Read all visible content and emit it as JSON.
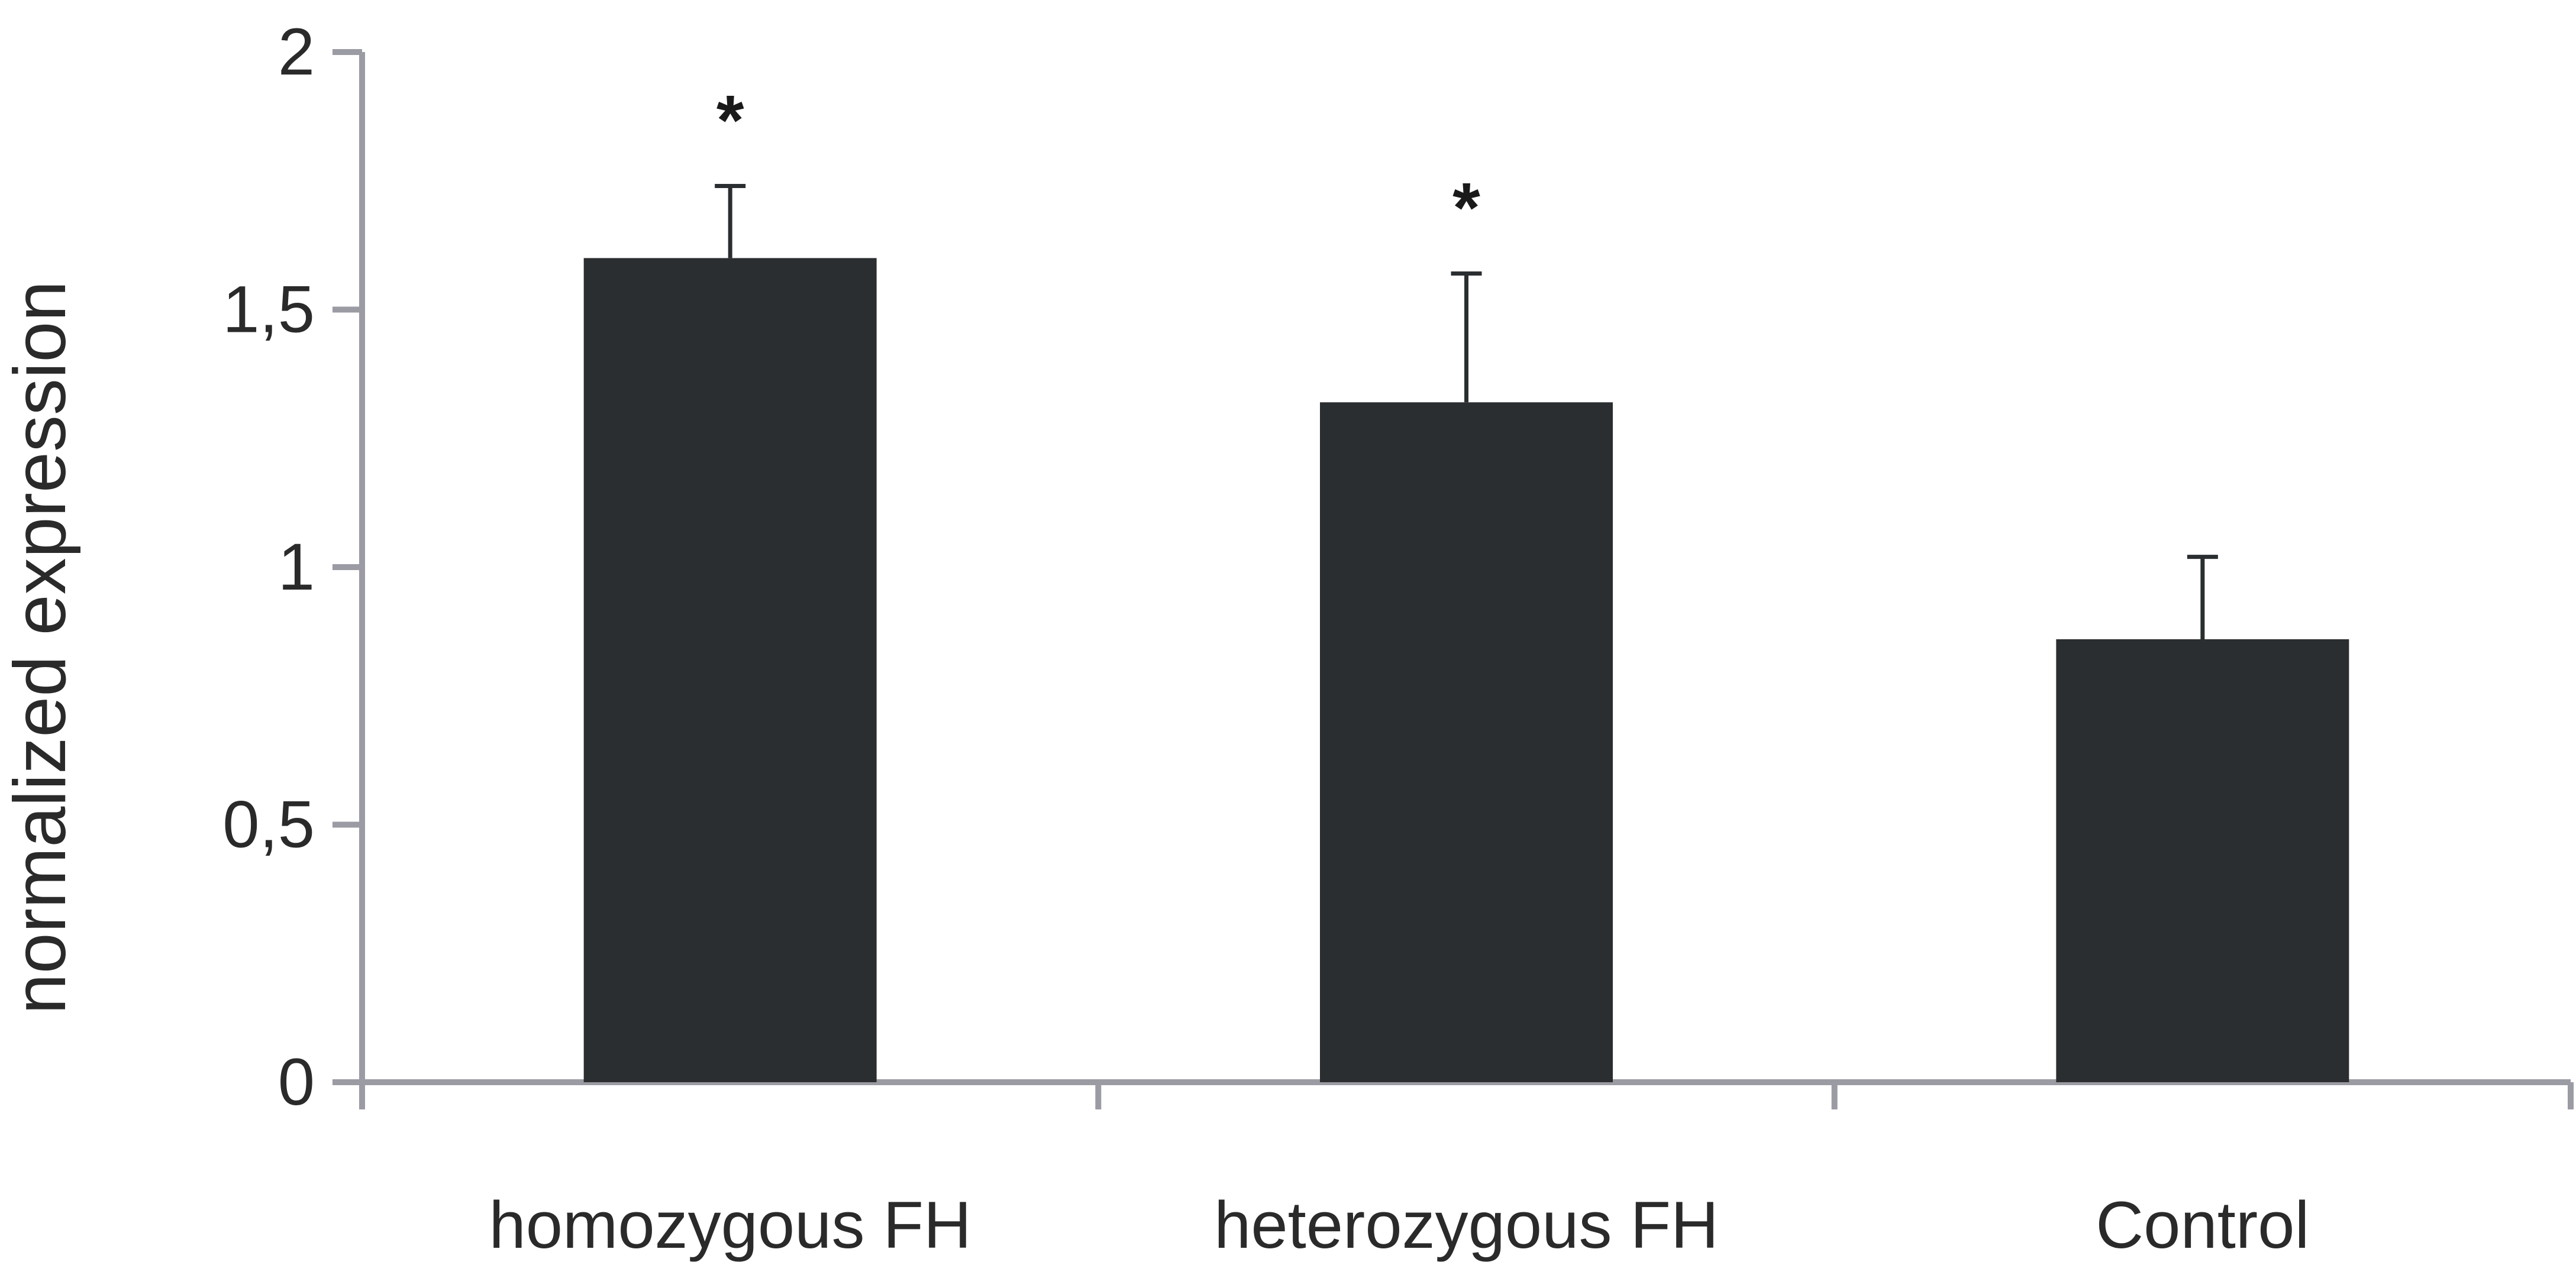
{
  "chart_data": {
    "type": "bar",
    "ylabel": "normalized expression",
    "xlabel": "",
    "categories": [
      "homozygous FH",
      "heterozygous FH",
      "Control"
    ],
    "values": [
      1.6,
      1.32,
      0.86
    ],
    "error_upper": [
      1.74,
      1.57,
      1.02
    ],
    "significance": [
      "*",
      "*",
      ""
    ],
    "ylim": [
      0,
      2
    ],
    "yticks": [
      0,
      0.5,
      1,
      1.5,
      2
    ],
    "ytick_labels": [
      "0",
      "0,5",
      "1",
      "1,5",
      "2"
    ],
    "grid": false,
    "legend": "none",
    "colors": {
      "bar": "#2b2e30",
      "axis": "#9a9ba3",
      "error": "#2b2e30"
    }
  }
}
